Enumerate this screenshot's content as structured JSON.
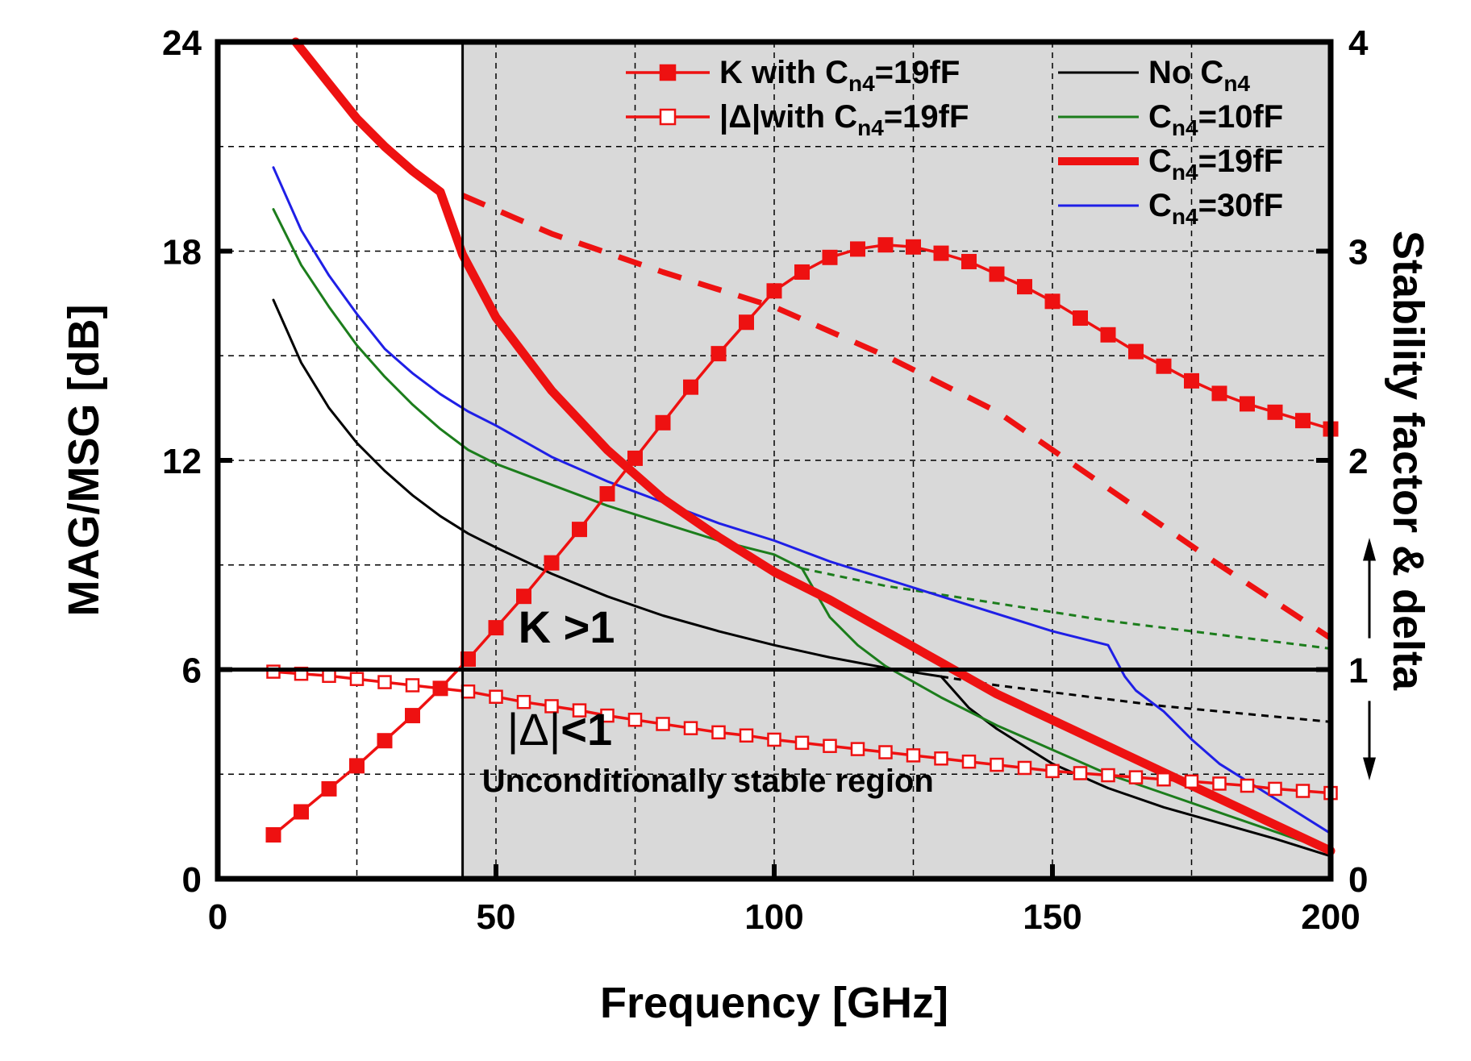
{
  "chart_data": {
    "type": "line",
    "xlabel": "Frequency [GHz]",
    "ylabel": "MAG/MSG [dB]",
    "y2label": "Stability factor & delta",
    "xlim": [
      0,
      200
    ],
    "ylim": [
      0,
      24
    ],
    "y2lim": [
      0,
      4
    ],
    "xticks": [
      0,
      50,
      100,
      150,
      200
    ],
    "yticks": [
      0,
      6,
      12,
      18,
      24
    ],
    "y2ticks": [
      0,
      1,
      2,
      3,
      4
    ],
    "grid": true,
    "stable_region_start_x": 44,
    "reference_line_y2": 1,
    "annotations": {
      "k_label": "K >1",
      "delta_label_prefix": "|Δ|",
      "delta_label_suffix": "<1",
      "region_label": "Unconditionally stable region"
    },
    "legend": {
      "placement": "top",
      "entries": [
        {
          "id": "k19",
          "prefix": "K with C",
          "sub": "n4",
          "suffix": "=19fF"
        },
        {
          "id": "d19",
          "prefix": "|Δ|with C",
          "sub": "n4",
          "suffix": "=19fF"
        },
        {
          "id": "no",
          "prefix": "No C",
          "sub": "n4",
          "suffix": ""
        },
        {
          "id": "c10",
          "prefix": "C",
          "sub": "n4",
          "suffix": "=10fF"
        },
        {
          "id": "c19",
          "prefix": "C",
          "sub": "n4",
          "suffix": "=19fF"
        },
        {
          "id": "c30",
          "prefix": "C",
          "sub": "n4",
          "suffix": "=30fF"
        }
      ]
    },
    "series": [
      {
        "id": "no",
        "axis": "left",
        "color": "#000000",
        "style": "solid",
        "x": [
          10,
          15,
          20,
          25,
          30,
          35,
          40,
          45,
          50,
          60,
          70,
          80,
          90,
          100,
          110,
          120,
          130
        ],
        "y": [
          16.6,
          14.8,
          13.5,
          12.5,
          11.7,
          11.0,
          10.4,
          9.9,
          9.5,
          8.75,
          8.1,
          7.55,
          7.1,
          6.7,
          6.35,
          6.05,
          5.8
        ]
      },
      {
        "id": "no_ext",
        "axis": "left",
        "color": "#000000",
        "style": "dotted",
        "x": [
          130,
          140,
          150,
          160,
          170,
          180,
          190,
          200
        ],
        "y": [
          5.8,
          5.55,
          5.35,
          5.15,
          4.95,
          4.8,
          4.65,
          4.5
        ]
      },
      {
        "id": "no_low",
        "axis": "left",
        "color": "#000000",
        "style": "solid",
        "x": [
          130,
          135,
          140,
          150,
          160,
          170,
          180,
          190,
          200
        ],
        "y": [
          5.8,
          4.9,
          4.3,
          3.3,
          2.6,
          2.05,
          1.6,
          1.15,
          0.65
        ]
      },
      {
        "id": "c10",
        "axis": "left",
        "color": "#1c7d1c",
        "style": "solid",
        "x": [
          10,
          15,
          20,
          25,
          30,
          35,
          40,
          45,
          50,
          60,
          70,
          80,
          90,
          100,
          105
        ],
        "y": [
          19.2,
          17.6,
          16.4,
          15.3,
          14.4,
          13.6,
          12.9,
          12.3,
          11.9,
          11.3,
          10.7,
          10.2,
          9.7,
          9.3,
          8.9
        ]
      },
      {
        "id": "c10_ext",
        "axis": "left",
        "color": "#1c7d1c",
        "style": "dotted",
        "x": [
          105,
          120,
          140,
          160,
          180,
          200
        ],
        "y": [
          8.9,
          8.4,
          7.9,
          7.4,
          7.0,
          6.6
        ]
      },
      {
        "id": "c10_low",
        "axis": "left",
        "color": "#1c7d1c",
        "style": "solid",
        "x": [
          105,
          110,
          115,
          120,
          130,
          140,
          150,
          160,
          170,
          180,
          190,
          200
        ],
        "y": [
          8.9,
          7.5,
          6.7,
          6.1,
          5.2,
          4.4,
          3.7,
          3.0,
          2.45,
          1.9,
          1.35,
          0.8
        ]
      },
      {
        "id": "c30",
        "axis": "left",
        "color": "#1f1fe6",
        "style": "solid",
        "x": [
          10,
          15,
          20,
          25,
          30,
          35,
          40,
          45,
          50,
          60,
          70,
          80,
          90,
          100,
          110,
          120,
          130,
          140,
          150,
          160,
          163,
          165,
          170,
          175,
          180,
          190,
          200
        ],
        "y": [
          20.4,
          18.6,
          17.3,
          16.2,
          15.2,
          14.5,
          13.9,
          13.4,
          13.0,
          12.1,
          11.4,
          10.8,
          10.2,
          9.7,
          9.1,
          8.6,
          8.1,
          7.6,
          7.1,
          6.7,
          5.8,
          5.4,
          4.8,
          4.0,
          3.3,
          2.3,
          1.3
        ]
      },
      {
        "id": "c19",
        "axis": "left",
        "color": "#ee1111",
        "style": "thick",
        "x": [
          14,
          20,
          25,
          30,
          35,
          40,
          44,
          50,
          60,
          70,
          80,
          90,
          100,
          110,
          120,
          130,
          140,
          150,
          160,
          170,
          180,
          190,
          200
        ],
        "y": [
          24,
          22.8,
          21.8,
          21.0,
          20.3,
          19.7,
          17.9,
          16.1,
          14.0,
          12.3,
          10.9,
          9.8,
          8.8,
          8.0,
          7.1,
          6.2,
          5.3,
          4.55,
          3.8,
          3.05,
          2.3,
          1.55,
          0.8
        ]
      },
      {
        "id": "c19_dash",
        "axis": "left",
        "color": "#ee1111",
        "style": "dashed",
        "x": [
          44,
          60,
          80,
          100,
          120,
          140,
          160,
          180,
          200
        ],
        "y": [
          19.6,
          18.5,
          17.4,
          16.4,
          15.0,
          13.4,
          11.2,
          9.0,
          6.9
        ]
      },
      {
        "id": "k19",
        "axis": "right",
        "color": "#ee1111",
        "marker": "filled-square",
        "x": [
          10,
          15,
          20,
          25,
          30,
          35,
          40,
          45,
          50,
          55,
          60,
          65,
          70,
          75,
          80,
          85,
          90,
          95,
          100,
          105,
          110,
          115,
          120,
          125,
          130,
          135,
          140,
          145,
          150,
          155,
          160,
          165,
          170,
          175,
          180,
          185,
          190,
          195,
          200
        ],
        "y": [
          0.21,
          0.32,
          0.43,
          0.54,
          0.66,
          0.78,
          0.91,
          1.05,
          1.2,
          1.35,
          1.51,
          1.67,
          1.84,
          2.01,
          2.18,
          2.35,
          2.51,
          2.66,
          2.81,
          2.9,
          2.97,
          3.01,
          3.03,
          3.02,
          2.99,
          2.95,
          2.89,
          2.83,
          2.76,
          2.68,
          2.6,
          2.52,
          2.45,
          2.38,
          2.32,
          2.27,
          2.23,
          2.19,
          2.15
        ]
      },
      {
        "id": "d19",
        "axis": "right",
        "color": "#ee1111",
        "marker": "open-square",
        "x": [
          10,
          15,
          20,
          25,
          30,
          35,
          40,
          45,
          50,
          55,
          60,
          65,
          70,
          75,
          80,
          85,
          90,
          95,
          100,
          105,
          110,
          115,
          120,
          125,
          130,
          135,
          140,
          145,
          150,
          155,
          160,
          165,
          170,
          175,
          180,
          185,
          190,
          195,
          200
        ],
        "y": [
          0.99,
          0.98,
          0.97,
          0.955,
          0.94,
          0.925,
          0.91,
          0.895,
          0.87,
          0.845,
          0.825,
          0.805,
          0.78,
          0.76,
          0.74,
          0.72,
          0.7,
          0.685,
          0.665,
          0.65,
          0.635,
          0.62,
          0.605,
          0.59,
          0.575,
          0.56,
          0.545,
          0.53,
          0.515,
          0.505,
          0.495,
          0.485,
          0.475,
          0.465,
          0.455,
          0.445,
          0.43,
          0.42,
          0.41
        ]
      }
    ]
  }
}
